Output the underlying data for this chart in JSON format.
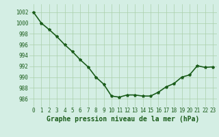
{
  "x": [
    0,
    1,
    2,
    3,
    4,
    5,
    6,
    7,
    8,
    9,
    10,
    11,
    12,
    13,
    14,
    15,
    16,
    17,
    18,
    19,
    20,
    21,
    22,
    23
  ],
  "y": [
    1002,
    1000,
    998.8,
    997.5,
    996,
    994.7,
    993.2,
    991.9,
    990,
    988.7,
    986.5,
    986.3,
    986.7,
    986.7,
    986.5,
    986.5,
    987.2,
    988.2,
    988.8,
    990,
    990.4,
    992.1,
    991.8,
    991.9
  ],
  "line_color": "#1a5c1a",
  "marker": "*",
  "marker_size": 3,
  "bg_color": "#d4eee4",
  "grid_color": "#aacfaa",
  "xlabel": "Graphe pression niveau de la mer (hPa)",
  "xlabel_fontsize": 7,
  "ylabel_ticks": [
    986,
    988,
    990,
    992,
    994,
    996,
    998,
    1000,
    1002
  ],
  "xtick_labels": [
    "0",
    "1",
    "2",
    "3",
    "4",
    "5",
    "6",
    "7",
    "8",
    "9",
    "10",
    "11",
    "12",
    "13",
    "14",
    "15",
    "16",
    "17",
    "18",
    "19",
    "20",
    "21",
    "22",
    "23"
  ],
  "ylim": [
    984.5,
    1003.5
  ],
  "xlim": [
    -0.5,
    23.5
  ],
  "tick_fontsize": 5.5,
  "linewidth": 1.2
}
